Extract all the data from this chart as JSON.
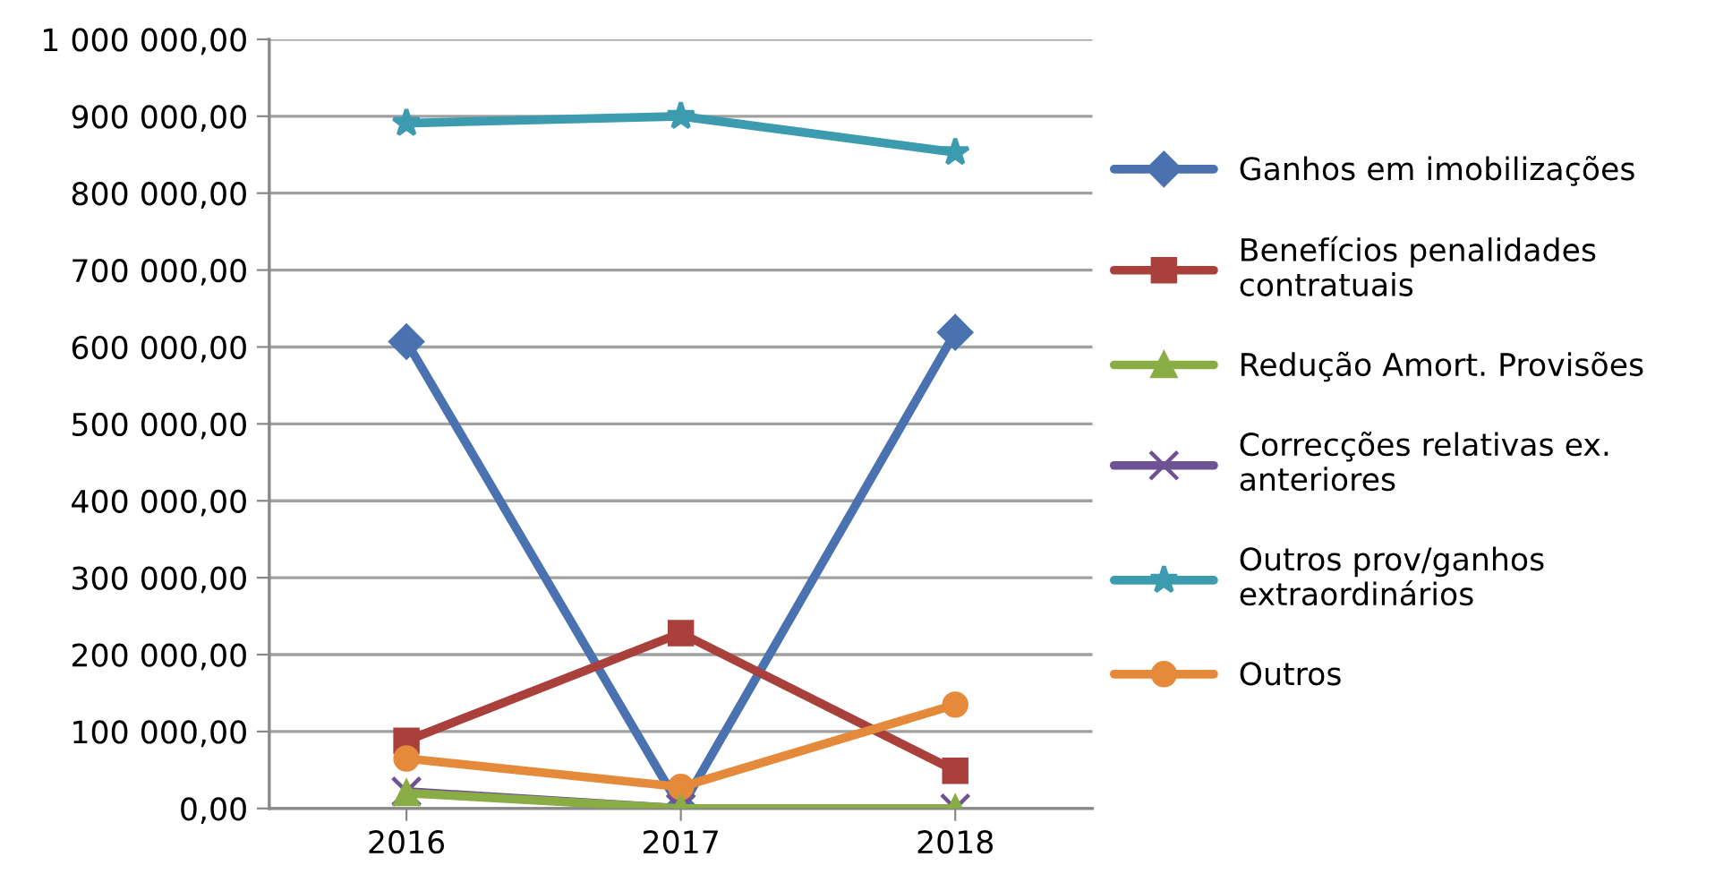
{
  "chart_data": {
    "type": "line",
    "categories": [
      "2016",
      "2017",
      "2018"
    ],
    "ylim": [
      0,
      1000000
    ],
    "yticks": [
      {
        "value": 0,
        "label": "0,00"
      },
      {
        "value": 100000,
        "label": "100 000,00"
      },
      {
        "value": 200000,
        "label": "200 000,00"
      },
      {
        "value": 300000,
        "label": "300 000,00"
      },
      {
        "value": 400000,
        "label": "400 000,00"
      },
      {
        "value": 500000,
        "label": "500 000,00"
      },
      {
        "value": 600000,
        "label": "600 000,00"
      },
      {
        "value": 700000,
        "label": "700 000,00"
      },
      {
        "value": 800000,
        "label": "800 000,00"
      },
      {
        "value": 900000,
        "label": "900 000,00"
      },
      {
        "value": 1000000,
        "label": "1 000 000,00"
      }
    ],
    "grid": "y",
    "legend": "right",
    "series": [
      {
        "name": "Ganhos em imobilizações",
        "color": "#4a72b0",
        "marker": "diamond",
        "values": [
          607000,
          0,
          619000
        ]
      },
      {
        "name": "Benefícios penalidades\ncontratuais",
        "color": "#a9403c",
        "marker": "square",
        "values": [
          88000,
          228000,
          49000
        ]
      },
      {
        "name": "Redução Amort. Provisões",
        "color": "#8aac45",
        "marker": "triangle",
        "values": [
          20000,
          0,
          0
        ]
      },
      {
        "name": "Correcções relativas ex.\nanteriores",
        "color": "#6f5294",
        "marker": "cross",
        "values": [
          22000,
          0,
          0
        ]
      },
      {
        "name": "Outros prov/ganhos\nextraordinários",
        "color": "#3d9bb0",
        "marker": "star",
        "values": [
          891000,
          900000,
          853000
        ]
      },
      {
        "name": "Outros",
        "color": "#e5893a",
        "marker": "circle",
        "values": [
          65000,
          28000,
          135000
        ]
      }
    ]
  }
}
